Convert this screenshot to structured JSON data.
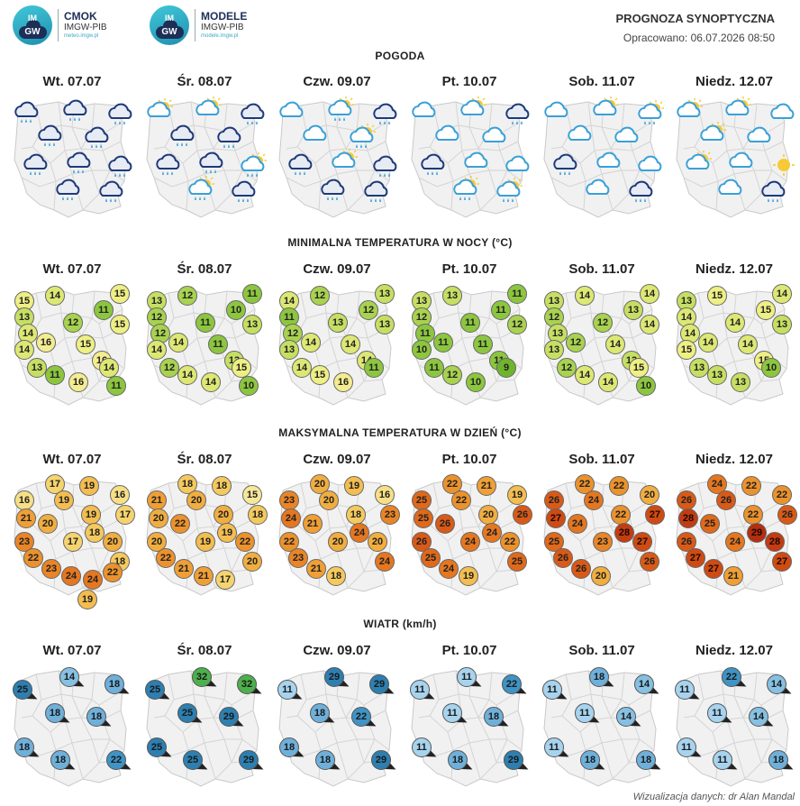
{
  "header": {
    "logo1": {
      "name": "CMOK",
      "org": "IMGW-PIB",
      "url": "meteo.imgw.pl",
      "badge_top": "IM",
      "badge_bottom": "GW"
    },
    "logo2": {
      "name": "MODELE",
      "org": "IMGW-PIB",
      "url": "modele.imgw.pl",
      "badge_top": "IM",
      "badge_bottom": "GW"
    },
    "title": "PROGNOZA SYNOPTYCZNA",
    "updated": "Opracowano: 06.07.2026 08:50"
  },
  "days": [
    "Wt. 07.07",
    "Śr. 08.07",
    "Czw. 09.07",
    "Pt. 10.07",
    "Sob. 11.07",
    "Niedz. 12.07"
  ],
  "sections": {
    "weather": "POGODA",
    "tmin": "MINIMALNA TEMPERATURA W NOCY (°C)",
    "tmax": "MAKSYMALNA TEMPERATURA W DZIEŃ (°C)",
    "wind": "WIATR (km/h)"
  },
  "weather_icons": [
    [
      "rain-cloud",
      "rain-cloud",
      "rain-cloud",
      "rain-cloud",
      "rain-cloud",
      "rain-cloud",
      "rain-cloud",
      "rain-cloud",
      "rain-cloud",
      "rain-cloud"
    ],
    [
      "partly-cloudy",
      "sun-cloud",
      "rain-cloud",
      "rain-cloud",
      "rain-cloud",
      "rain-cloud",
      "rain-cloud",
      "sun-rain",
      "sun-rain",
      "rain-cloud"
    ],
    [
      "cloud",
      "sun-rain",
      "rain-cloud",
      "cloud",
      "sun-rain",
      "rain-cloud",
      "sun-cloud",
      "rain-cloud",
      "rain-cloud",
      "rain-cloud"
    ],
    [
      "cloud",
      "sun-cloud",
      "rain-cloud",
      "cloud",
      "cloud",
      "rain-cloud",
      "cloud",
      "cloud",
      "sun-rain",
      "sun-rain"
    ],
    [
      "cloud",
      "sun-cloud",
      "sun-rain",
      "cloud",
      "cloud",
      "rain-cloud",
      "cloud",
      "cloud",
      "cloud",
      "rain-cloud"
    ],
    [
      "sun-cloud",
      "sun-cloud",
      "cloud",
      "sun-cloud",
      "cloud",
      "sun-cloud",
      "cloud",
      "sun",
      "cloud",
      "rain-cloud"
    ]
  ],
  "tmin": [
    [
      "15",
      "14",
      "11",
      "15",
      "13",
      "12",
      "15",
      "14",
      "16",
      "15",
      "14",
      "16",
      "13",
      "11",
      "16",
      "14",
      "11"
    ],
    [
      "13",
      "12",
      "10",
      "11",
      "12",
      "11",
      "13",
      "12",
      "14",
      "11",
      "14",
      "13",
      "12",
      "14",
      "14",
      "15",
      "10"
    ],
    [
      "14",
      "12",
      "12",
      "13",
      "11",
      "13",
      "13",
      "12",
      "14",
      "14",
      "13",
      "14",
      "14",
      "15",
      "16",
      "11"
    ],
    [
      "13",
      "13",
      "11",
      "11",
      "12",
      "11",
      "12",
      "11",
      "11",
      "11",
      "10",
      "11",
      "11",
      "12",
      "10",
      "9"
    ],
    [
      "13",
      "14",
      "13",
      "14",
      "12",
      "12",
      "14",
      "13",
      "12",
      "14",
      "13",
      "13",
      "12",
      "14",
      "14",
      "15",
      "10"
    ],
    [
      "13",
      "15",
      "15",
      "14",
      "14",
      "14",
      "13",
      "14",
      "14",
      "14",
      "15",
      "15",
      "13",
      "13",
      "13",
      "10"
    ]
  ],
  "tmax": [
    [
      "17",
      "19",
      "16",
      "16",
      "19",
      "19",
      "17",
      "21",
      "20",
      "18",
      "23",
      "17",
      "20",
      "18",
      "22",
      "23",
      "24",
      "24",
      "22",
      "19"
    ],
    [
      "18",
      "18",
      "15",
      "21",
      "20",
      "20",
      "18",
      "20",
      "22",
      "19",
      "20",
      "19",
      "22",
      "20",
      "22",
      "21",
      "21",
      "17"
    ],
    [
      "20",
      "19",
      "16",
      "23",
      "20",
      "18",
      "23",
      "24",
      "21",
      "24",
      "22",
      "20",
      "20",
      "24",
      "23",
      "21",
      "18"
    ],
    [
      "22",
      "21",
      "19",
      "25",
      "22",
      "20",
      "26",
      "25",
      "26",
      "24",
      "26",
      "24",
      "22",
      "25",
      "25",
      "24",
      "19"
    ],
    [
      "22",
      "22",
      "20",
      "26",
      "24",
      "22",
      "27",
      "27",
      "24",
      "28",
      "25",
      "23",
      "27",
      "26",
      "26",
      "26",
      "20"
    ],
    [
      "24",
      "22",
      "22",
      "26",
      "26",
      "22",
      "26",
      "28",
      "25",
      "29",
      "26",
      "24",
      "28",
      "27",
      "27",
      "27",
      "21"
    ]
  ],
  "wind": [
    [
      "14",
      "18",
      "25",
      "18",
      "18",
      "18",
      "18",
      "22"
    ],
    [
      "32",
      "32",
      "25",
      "25",
      "29",
      "25",
      "25",
      "29"
    ],
    [
      "29",
      "29",
      "11",
      "18",
      "22",
      "18",
      "18",
      "29"
    ],
    [
      "11",
      "22",
      "11",
      "11",
      "18",
      "11",
      "18",
      "29"
    ],
    [
      "18",
      "14",
      "11",
      "11",
      "14",
      "11",
      "18",
      "18"
    ],
    [
      "22",
      "14",
      "11",
      "11",
      "14",
      "11",
      "11",
      "18"
    ]
  ],
  "credit": "Wizualizacja danych: dr Alan Mandal"
}
